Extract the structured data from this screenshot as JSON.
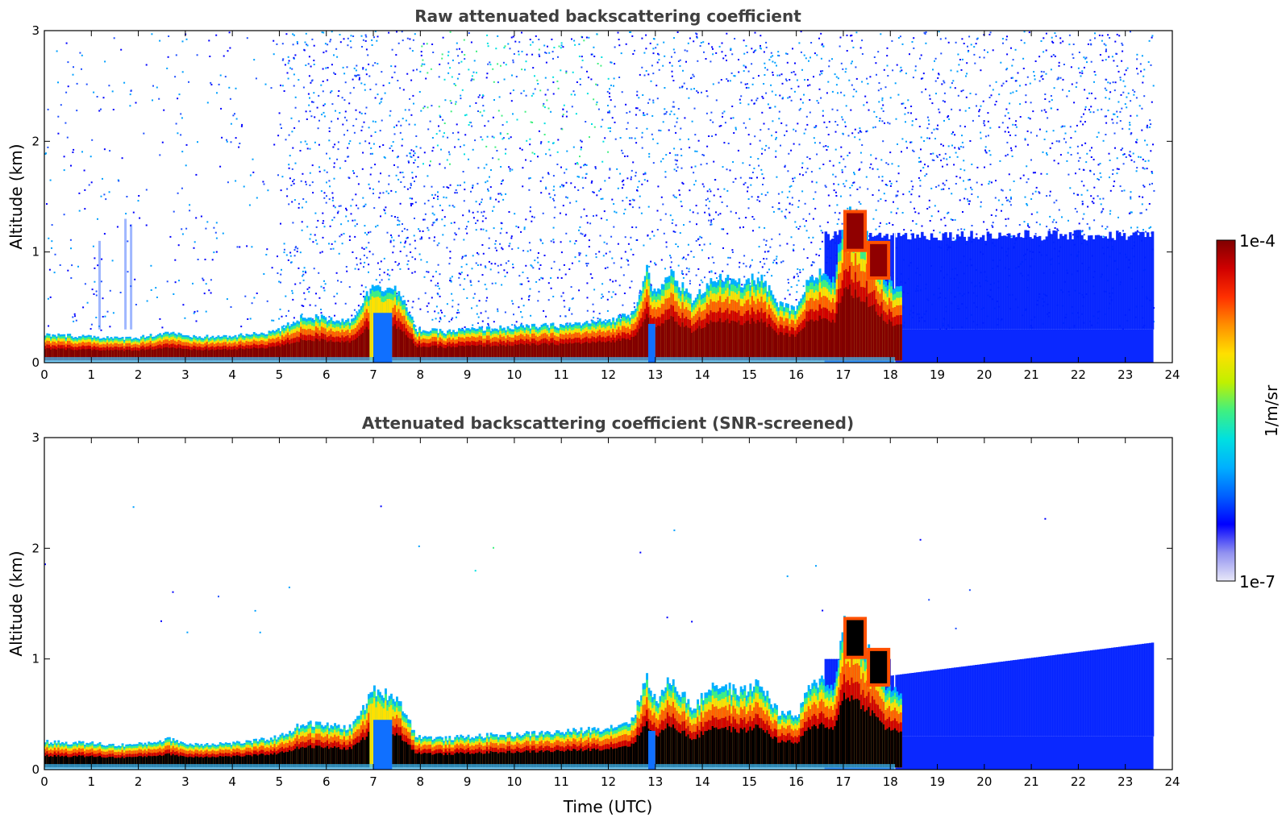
{
  "chart_data": [
    {
      "type": "heatmap",
      "title": "Raw attenuated backscattering coefficient",
      "xlabel": "",
      "ylabel": "Altitude (km)",
      "xlim": [
        0,
        24
      ],
      "ylim": [
        0,
        3
      ],
      "x_ticks": [
        "0",
        "1",
        "2",
        "3",
        "4",
        "5",
        "6",
        "7",
        "8",
        "9",
        "10",
        "11",
        "12",
        "13",
        "14",
        "15",
        "16",
        "17",
        "18",
        "19",
        "20",
        "21",
        "22",
        "23",
        "24"
      ],
      "y_ticks": [
        "0",
        "1",
        "2",
        "3"
      ],
      "screened": false,
      "layer_top_km": [
        [
          0,
          0.25
        ],
        [
          1,
          0.24
        ],
        [
          1.5,
          0.22
        ],
        [
          2,
          0.23
        ],
        [
          2.7,
          0.28
        ],
        [
          3,
          0.23
        ],
        [
          4,
          0.24
        ],
        [
          4.5,
          0.26
        ],
        [
          5,
          0.3
        ],
        [
          5.5,
          0.42
        ],
        [
          6,
          0.4
        ],
        [
          6.5,
          0.38
        ],
        [
          6.8,
          0.58
        ],
        [
          7,
          0.72
        ],
        [
          7.5,
          0.65
        ],
        [
          7.9,
          0.3
        ],
        [
          8.5,
          0.28
        ],
        [
          9,
          0.3
        ],
        [
          10,
          0.32
        ],
        [
          11,
          0.34
        ],
        [
          12,
          0.38
        ],
        [
          12.5,
          0.45
        ],
        [
          12.8,
          0.85
        ],
        [
          13,
          0.6
        ],
        [
          13.3,
          0.82
        ],
        [
          13.8,
          0.55
        ],
        [
          14.2,
          0.78
        ],
        [
          14.8,
          0.7
        ],
        [
          15.2,
          0.78
        ],
        [
          15.6,
          0.52
        ],
        [
          16,
          0.48
        ],
        [
          16.2,
          0.7
        ],
        [
          16.5,
          0.82
        ],
        [
          16.8,
          0.75
        ],
        [
          17,
          1.38
        ],
        [
          17.5,
          1.1
        ],
        [
          17.9,
          0.75
        ],
        [
          18.1,
          0.7
        ]
      ]
    },
    {
      "type": "heatmap",
      "title": "Attenuated backscattering coefficient (SNR-screened)",
      "xlabel": "Time (UTC)",
      "ylabel": "Altitude (km)",
      "xlim": [
        0,
        24
      ],
      "ylim": [
        0,
        3
      ],
      "x_ticks": [
        "0",
        "1",
        "2",
        "3",
        "4",
        "5",
        "6",
        "7",
        "8",
        "9",
        "10",
        "11",
        "12",
        "13",
        "14",
        "15",
        "16",
        "17",
        "18",
        "19",
        "20",
        "21",
        "22",
        "23",
        "24"
      ],
      "y_ticks": [
        "0",
        "1",
        "2",
        "3"
      ],
      "screened": true,
      "layer_top_km": [
        [
          0,
          0.25
        ],
        [
          1,
          0.24
        ],
        [
          1.5,
          0.22
        ],
        [
          2,
          0.23
        ],
        [
          2.7,
          0.28
        ],
        [
          3,
          0.23
        ],
        [
          4,
          0.24
        ],
        [
          4.5,
          0.26
        ],
        [
          5,
          0.3
        ],
        [
          5.5,
          0.42
        ],
        [
          6,
          0.4
        ],
        [
          6.5,
          0.38
        ],
        [
          6.8,
          0.58
        ],
        [
          7,
          0.72
        ],
        [
          7.5,
          0.65
        ],
        [
          7.9,
          0.3
        ],
        [
          8.5,
          0.28
        ],
        [
          9,
          0.3
        ],
        [
          10,
          0.32
        ],
        [
          11,
          0.34
        ],
        [
          12,
          0.38
        ],
        [
          12.5,
          0.45
        ],
        [
          12.8,
          0.85
        ],
        [
          13,
          0.6
        ],
        [
          13.3,
          0.82
        ],
        [
          13.8,
          0.55
        ],
        [
          14.2,
          0.78
        ],
        [
          14.8,
          0.7
        ],
        [
          15.2,
          0.78
        ],
        [
          15.6,
          0.52
        ],
        [
          16,
          0.48
        ],
        [
          16.2,
          0.7
        ],
        [
          16.5,
          0.82
        ],
        [
          16.8,
          0.75
        ],
        [
          17,
          1.38
        ],
        [
          17.5,
          1.1
        ],
        [
          17.9,
          0.75
        ],
        [
          18.1,
          0.7
        ]
      ]
    }
  ],
  "colorbar": {
    "label": "1/m/sr",
    "max_label": "1e-4",
    "min_label": "1e-7",
    "colors": [
      "#e8e8f8",
      "#9090f0",
      "#0000ff",
      "#0060ff",
      "#00b0ff",
      "#00e0e0",
      "#40f080",
      "#c0f000",
      "#ffe000",
      "#ff9000",
      "#ff3000",
      "#d00000",
      "#800000"
    ]
  },
  "data_end_utc": 23.6
}
